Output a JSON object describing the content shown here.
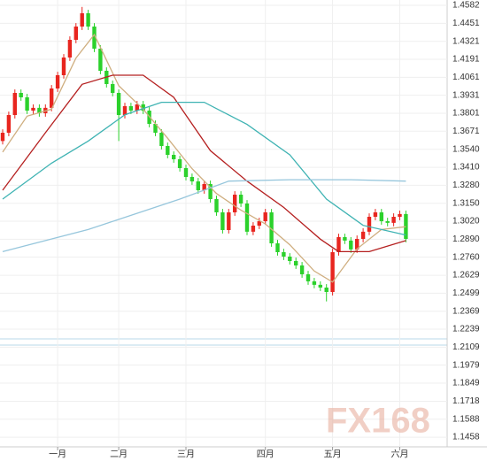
{
  "chart_data": {
    "type": "candlestick",
    "categories": [
      null,
      null,
      null,
      null,
      null,
      null,
      null,
      null,
      null,
      "一月",
      null,
      null,
      null,
      null,
      null,
      null,
      null,
      null,
      null,
      "二月",
      null,
      null,
      null,
      null,
      null,
      null,
      null,
      null,
      null,
      null,
      "三月",
      null,
      null,
      null,
      null,
      null,
      null,
      null,
      null,
      null,
      null,
      null,
      null,
      "四月",
      null,
      null,
      null,
      null,
      null,
      null,
      null,
      null,
      null,
      null,
      "五月",
      null,
      null,
      null,
      null,
      null,
      null,
      null,
      null,
      null,
      null,
      "六月",
      null
    ],
    "open": [
      1.36,
      1.366,
      1.3788,
      1.3948,
      1.3916,
      1.382,
      1.384,
      1.3801,
      1.384,
      1.398,
      1.4076,
      1.4204,
      1.4332,
      1.4428,
      1.4524,
      1.4428,
      1.4268,
      1.4108,
      1.4012,
      1.3948,
      1.3788,
      1.3852,
      1.382,
      1.3865,
      1.382,
      1.3724,
      1.366,
      1.3564,
      1.35,
      1.3468,
      1.3404,
      1.334,
      1.3308,
      1.3244,
      1.3289,
      1.318,
      1.3084,
      1.2956,
      1.3084,
      1.3212,
      1.3148,
      1.2944,
      1.2988,
      1.302,
      1.3084,
      1.286,
      1.2796,
      1.2764,
      1.2732,
      1.27,
      1.2636,
      1.2585,
      1.256,
      1.254,
      1.2508,
      1.2796,
      1.2905,
      1.288,
      1.2816,
      1.2892,
      1.2944,
      1.3052,
      1.3084,
      1.302,
      1.3008,
      1.3052,
      1.3072
    ],
    "high": [
      1.3685,
      1.3813,
      1.3973,
      1.3973,
      1.3941,
      1.3865,
      1.3865,
      1.3865,
      1.4005,
      1.4101,
      1.4229,
      1.4357,
      1.4453,
      1.457,
      1.4549,
      1.4453,
      1.4293,
      1.4133,
      1.4037,
      1.3973,
      1.3877,
      1.3877,
      1.389,
      1.389,
      1.3845,
      1.3749,
      1.3685,
      1.3589,
      1.3525,
      1.3493,
      1.3429,
      1.3365,
      1.3333,
      1.3314,
      1.3314,
      1.3205,
      1.3109,
      1.3109,
      1.3237,
      1.3237,
      1.3173,
      1.3013,
      1.3045,
      1.3109,
      1.3109,
      1.2885,
      1.2821,
      1.2789,
      1.2757,
      1.2725,
      1.2661,
      1.261,
      1.2585,
      1.2565,
      1.2821,
      1.293,
      1.293,
      1.2905,
      1.2917,
      1.2969,
      1.3077,
      1.3109,
      1.3109,
      1.3045,
      1.3077,
      1.3097,
      1.3097
    ],
    "low": [
      1.3575,
      1.3635,
      1.3763,
      1.3891,
      1.3795,
      1.3795,
      1.3776,
      1.3776,
      1.3815,
      1.3955,
      1.4051,
      1.4179,
      1.4307,
      1.4403,
      1.4403,
      1.4243,
      1.4083,
      1.3987,
      1.3923,
      1.36,
      1.3763,
      1.3795,
      1.3795,
      1.3795,
      1.3699,
      1.3635,
      1.3539,
      1.3475,
      1.3443,
      1.3379,
      1.3315,
      1.3283,
      1.3219,
      1.3219,
      1.3155,
      1.3059,
      1.2931,
      1.2931,
      1.3059,
      1.3123,
      1.2919,
      1.2919,
      1.2963,
      1.2995,
      1.2835,
      1.2771,
      1.2739,
      1.2707,
      1.2675,
      1.2611,
      1.256,
      1.2535,
      1.2515,
      1.244,
      1.2483,
      1.2771,
      1.2855,
      1.2791,
      1.2791,
      1.2867,
      1.2919,
      1.3027,
      1.2995,
      1.2983,
      1.2983,
      1.3027,
      1.2867
    ],
    "close": [
      1.366,
      1.3788,
      1.3948,
      1.3916,
      1.382,
      1.384,
      1.3801,
      1.384,
      1.398,
      1.4076,
      1.4204,
      1.4332,
      1.4428,
      1.4524,
      1.4428,
      1.4268,
      1.4108,
      1.4012,
      1.3948,
      1.3788,
      1.3852,
      1.382,
      1.3865,
      1.382,
      1.3724,
      1.366,
      1.3564,
      1.35,
      1.3468,
      1.3404,
      1.334,
      1.3308,
      1.3244,
      1.3289,
      1.318,
      1.3084,
      1.2956,
      1.3084,
      1.3212,
      1.3148,
      1.2944,
      1.2988,
      1.302,
      1.3084,
      1.286,
      1.2796,
      1.2764,
      1.2732,
      1.27,
      1.2636,
      1.2585,
      1.256,
      1.254,
      1.2508,
      1.2796,
      1.2905,
      1.288,
      1.2816,
      1.2892,
      1.2944,
      1.3052,
      1.3084,
      1.302,
      1.3008,
      1.3052,
      1.3072,
      1.2892
    ],
    "up_color": "#e8251f",
    "down_color": "#2bd12b",
    "series": [
      {
        "color": "#cfae7f",
        "x": [
          0,
          4,
          8,
          12,
          15,
          19,
          23,
          27,
          31,
          35,
          39,
          43,
          47,
          51,
          54,
          58,
          62,
          66
        ],
        "values": [
          1.352,
          1.378,
          1.383,
          1.42,
          1.437,
          1.4,
          1.383,
          1.362,
          1.34,
          1.322,
          1.31,
          1.3,
          1.285,
          1.266,
          1.258,
          1.282,
          1.296,
          1.298
        ]
      },
      {
        "color": "#b52020",
        "x": [
          0,
          7,
          13,
          18,
          23,
          28,
          34,
          40,
          46,
          52,
          55,
          60,
          66
        ],
        "values": [
          1.3244,
          1.366,
          1.401,
          1.4076,
          1.4076,
          1.3916,
          1.353,
          1.331,
          1.312,
          1.289,
          1.28,
          1.28,
          1.288
        ]
      },
      {
        "color": "#3fb3b3",
        "x": [
          0,
          8,
          14,
          20,
          26,
          33,
          40,
          47,
          53,
          59,
          66
        ],
        "values": [
          1.318,
          1.344,
          1.36,
          1.379,
          1.388,
          1.388,
          1.372,
          1.35,
          1.318,
          1.299,
          1.292
        ]
      },
      {
        "color": "#96c6dc",
        "x": [
          0,
          14,
          29,
          37,
          47,
          57,
          66
        ],
        "values": [
          1.28,
          1.296,
          1.318,
          1.331,
          1.332,
          1.332,
          1.331
        ]
      }
    ],
    "ylim": [
      1.1388,
      1.462
    ],
    "yticks": [
      1.4582,
      1.4451,
      1.4321,
      1.4191,
      1.4061,
      1.3931,
      1.3801,
      1.3671,
      {
        "value": 1.354,
        "label": "1.3540"
      },
      {
        "value": 1.341,
        "label": "1.3410"
      },
      {
        "value": 1.328,
        "label": "1.3280"
      },
      {
        "value": 1.315,
        "label": "1.3150"
      },
      {
        "value": 1.302,
        "label": "1.3020"
      },
      {
        "value": 1.289,
        "label": "1.2890"
      },
      {
        "value": 1.276,
        "label": "1.2760"
      },
      1.2629,
      1.2499,
      1.2369,
      1.2239,
      1.2109,
      1.1979,
      1.1849,
      1.1718,
      1.1588,
      1.1458
    ],
    "grid": true,
    "watermark": "FX168"
  }
}
